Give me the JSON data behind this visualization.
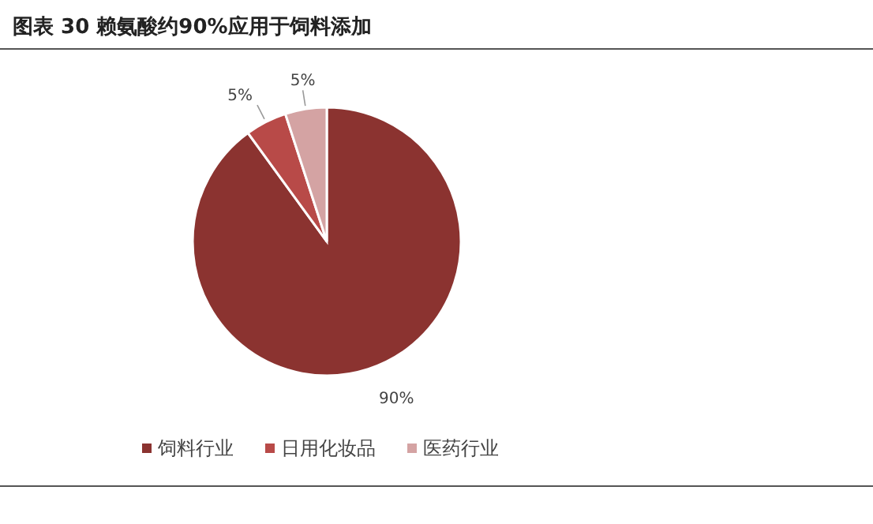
{
  "chart_data": {
    "type": "pie",
    "title": "图表 30 赖氨酸约90%应用于饲料添加",
    "categories": [
      "饲料行业",
      "日用化妆品",
      "医药行业"
    ],
    "values": [
      90,
      5,
      5
    ],
    "colors": [
      "#8b3330",
      "#b84a48",
      "#d4a3a3"
    ],
    "value_labels": [
      "90%",
      "5%",
      "5%"
    ],
    "legend": "bottom"
  }
}
